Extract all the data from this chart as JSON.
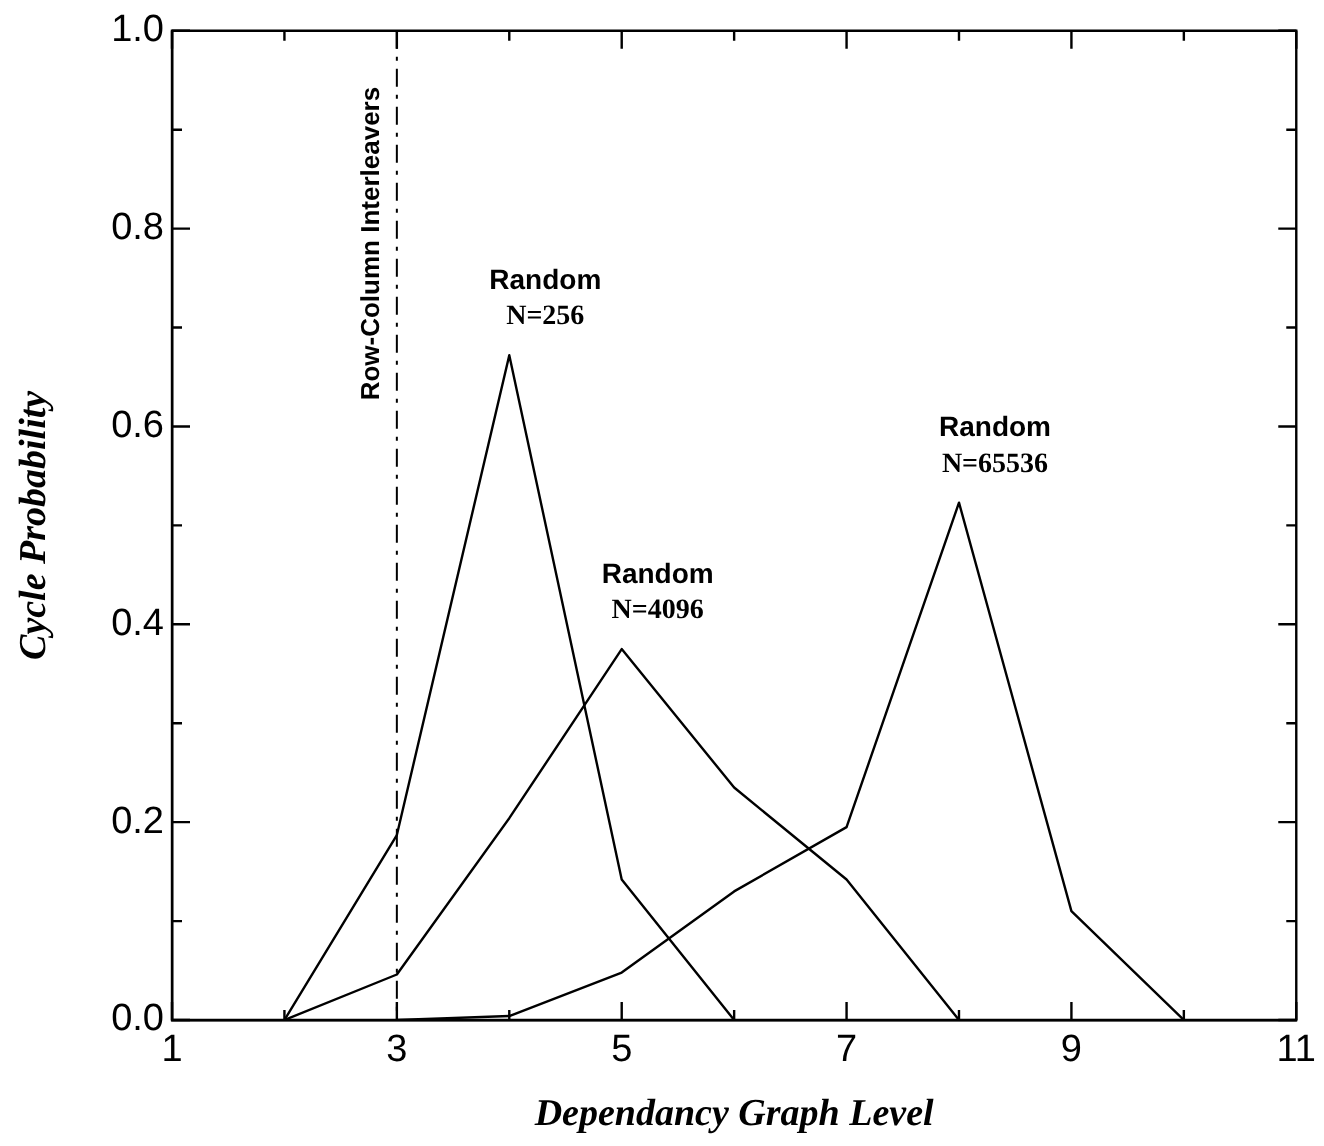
{
  "chart_data": {
    "type": "line",
    "xlabel": "Dependancy Graph Level",
    "ylabel": "Cycle Probability",
    "xlim": [
      1,
      11
    ],
    "xticks": [
      1,
      {
        "value": 2,
        "label": null
      },
      3,
      {
        "value": 4,
        "label": null
      },
      5,
      {
        "value": 6,
        "label": null
      },
      7,
      {
        "value": 8,
        "label": null
      },
      9,
      {
        "value": 10,
        "label": null
      },
      11
    ],
    "ylim": [
      0,
      1
    ],
    "yticks": [
      {
        "value": 0,
        "label": "0.0"
      },
      {
        "value": 0.1,
        "label": null
      },
      0.2,
      {
        "value": 0.3,
        "label": null
      },
      0.4,
      {
        "value": 0.5,
        "label": null
      },
      0.6,
      {
        "value": 0.7,
        "label": null
      },
      0.8,
      {
        "value": 0.9,
        "label": null
      },
      {
        "value": 1,
        "label": "1.0"
      }
    ],
    "grid": false,
    "legend": false,
    "marker": "none",
    "line_style": "solid",
    "series": [
      {
        "color": "#000000",
        "x": [
          2,
          3,
          4,
          5,
          6
        ],
        "values": [
          0,
          0.187,
          0.672,
          0.142,
          0
        ]
      },
      {
        "color": "#000000",
        "x": [
          2,
          3,
          4,
          5,
          6,
          7,
          8
        ],
        "values": [
          0,
          0.046,
          0.204,
          0.375,
          0.235,
          0.142,
          0
        ]
      },
      {
        "color": "#000000",
        "x": [
          3,
          4,
          5,
          6,
          7,
          8,
          9,
          10
        ],
        "values": [
          0,
          0.004,
          0.048,
          0.13,
          0.195,
          0.523,
          0.11,
          0
        ]
      }
    ],
    "ref_lines": [
      {
        "axis": "x",
        "value": 3,
        "label": "Row-Column Interleavers",
        "color": "#000000",
        "line_style": "dashed"
      }
    ],
    "annotations": [
      {
        "text": "Random\nN=256",
        "x": 4,
        "y": 0.672
      },
      {
        "text": "Random\nN=4096",
        "x": 5,
        "y": 0.375
      },
      {
        "text": "Random\nN=65536",
        "x": 8,
        "y": 0.523
      }
    ]
  }
}
